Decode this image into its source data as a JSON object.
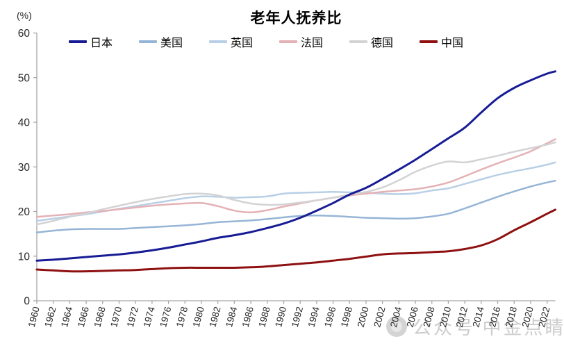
{
  "page": {
    "background": "#ffffff"
  },
  "chart_data": {
    "type": "line",
    "title": "老年人抚养比",
    "unit_label": "(%)",
    "grid": false,
    "legend_position": "top",
    "ylim": [
      0,
      60
    ],
    "yticks": [
      0,
      10,
      20,
      30,
      40,
      50,
      60
    ],
    "xlim": [
      1960,
      2023
    ],
    "xtick_labels": [
      "1960",
      "1962",
      "1964",
      "1966",
      "1968",
      "1970",
      "1972",
      "1974",
      "1976",
      "1978",
      "1980",
      "1982",
      "1984",
      "1986",
      "1988",
      "1990",
      "1992",
      "1994",
      "1996",
      "1998",
      "2000",
      "2002",
      "2004",
      "2006",
      "2008",
      "2010",
      "2012",
      "2014",
      "2016",
      "2018",
      "2020",
      "2022"
    ],
    "x": [
      1960,
      1962,
      1964,
      1966,
      1968,
      1970,
      1972,
      1974,
      1976,
      1978,
      1980,
      1982,
      1984,
      1986,
      1988,
      1990,
      1992,
      1994,
      1996,
      1998,
      2000,
      2002,
      2004,
      2006,
      2008,
      2010,
      2012,
      2014,
      2016,
      2018,
      2020,
      2022,
      2023
    ],
    "series": [
      {
        "name": "日本",
        "id": "japan",
        "color": "#171c94",
        "line_width": 3,
        "values": [
          9.0,
          9.2,
          9.5,
          9.8,
          10.1,
          10.4,
          10.8,
          11.3,
          11.9,
          12.6,
          13.3,
          14.1,
          14.7,
          15.4,
          16.3,
          17.3,
          18.6,
          20.2,
          21.9,
          23.8,
          25.3,
          27.3,
          29.4,
          31.6,
          34.0,
          36.4,
          38.8,
          42.2,
          45.4,
          47.7,
          49.4,
          50.9,
          51.4
        ]
      },
      {
        "name": "美国",
        "id": "usa",
        "color": "#96b5d6",
        "line_width": 2.5,
        "values": [
          15.3,
          15.7,
          16.0,
          16.1,
          16.1,
          16.1,
          16.3,
          16.5,
          16.7,
          16.9,
          17.2,
          17.6,
          17.8,
          18.0,
          18.3,
          18.7,
          19.0,
          19.1,
          19.0,
          18.8,
          18.6,
          18.5,
          18.4,
          18.5,
          18.9,
          19.5,
          20.7,
          22.0,
          23.3,
          24.5,
          25.6,
          26.5,
          26.9
        ]
      },
      {
        "name": "英国",
        "id": "uk",
        "color": "#b8cfe6",
        "line_width": 2.5,
        "values": [
          17.9,
          18.4,
          18.9,
          19.4,
          20.0,
          20.6,
          21.2,
          21.8,
          22.4,
          23.0,
          23.4,
          23.3,
          23.1,
          23.2,
          23.4,
          24.0,
          24.2,
          24.3,
          24.4,
          24.3,
          24.2,
          24.0,
          23.9,
          24.1,
          24.7,
          25.2,
          26.2,
          27.2,
          28.2,
          29.0,
          29.7,
          30.5,
          31.0
        ]
      },
      {
        "name": "法国",
        "id": "france",
        "color": "#e4b2b6",
        "line_width": 2.5,
        "values": [
          18.8,
          19.1,
          19.4,
          19.8,
          20.1,
          20.5,
          20.9,
          21.3,
          21.6,
          21.8,
          21.9,
          21.2,
          20.2,
          19.8,
          20.3,
          21.1,
          21.8,
          22.5,
          23.1,
          23.6,
          24.0,
          24.4,
          24.7,
          25.0,
          25.6,
          26.5,
          27.9,
          29.4,
          30.8,
          32.1,
          33.5,
          35.3,
          36.2
        ]
      },
      {
        "name": "德国",
        "id": "germany",
        "color": "#d3d3d5",
        "line_width": 2.5,
        "values": [
          17.1,
          17.9,
          18.8,
          19.6,
          20.5,
          21.3,
          22.1,
          22.8,
          23.4,
          23.9,
          24.0,
          23.6,
          22.6,
          21.8,
          21.5,
          21.6,
          22.0,
          22.5,
          23.1,
          23.8,
          24.4,
          25.4,
          27.0,
          28.9,
          30.3,
          31.2,
          31.0,
          31.7,
          32.5,
          33.4,
          34.2,
          35.0,
          35.5
        ]
      },
      {
        "name": "中国",
        "id": "china",
        "color": "#8e1010",
        "line_width": 3,
        "values": [
          7.0,
          6.8,
          6.6,
          6.6,
          6.7,
          6.8,
          6.9,
          7.1,
          7.3,
          7.4,
          7.4,
          7.4,
          7.4,
          7.5,
          7.7,
          8.0,
          8.3,
          8.6,
          9.0,
          9.4,
          9.9,
          10.4,
          10.6,
          10.7,
          10.9,
          11.1,
          11.6,
          12.4,
          13.8,
          15.8,
          17.6,
          19.5,
          20.4
        ]
      }
    ],
    "draw_order": [
      1,
      2,
      3,
      4,
      0,
      5
    ],
    "axis_color": "#a6a6a6",
    "tick_label_color": "#262626"
  },
  "watermark": {
    "text": "公众号 中金点睛",
    "logo": "cicc-seal"
  }
}
